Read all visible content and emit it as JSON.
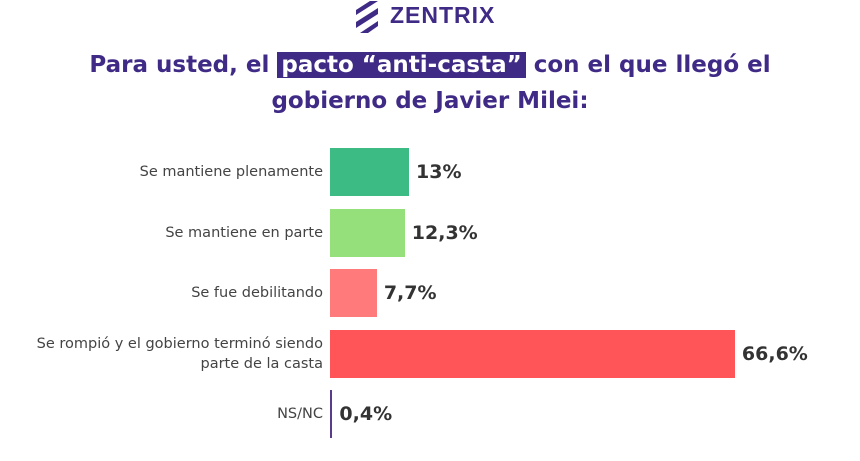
{
  "brand": "ZENTRIX",
  "chart_data": {
    "type": "bar",
    "title_parts": [
      "Para usted, el",
      "pacto “anti-casta”",
      "con el que llegó el",
      "gobierno de Javier Milei:"
    ],
    "categories": [
      "Se mantiene plenamente",
      "Se mantiene en parte",
      "Se fue debilitando",
      "Se rompió y el gobierno terminó siendo parte de la casta",
      "NS/NC"
    ],
    "values": [
      13,
      12.3,
      7.7,
      66.6,
      0.4
    ],
    "value_labels": [
      "13%",
      "12,3%",
      "7,7%",
      "66,6%",
      "0,4%"
    ],
    "colors": [
      "#3dbb84",
      "#95e07a",
      "#ff7b7b",
      "#ff5558",
      "#5b3b8c"
    ]
  }
}
